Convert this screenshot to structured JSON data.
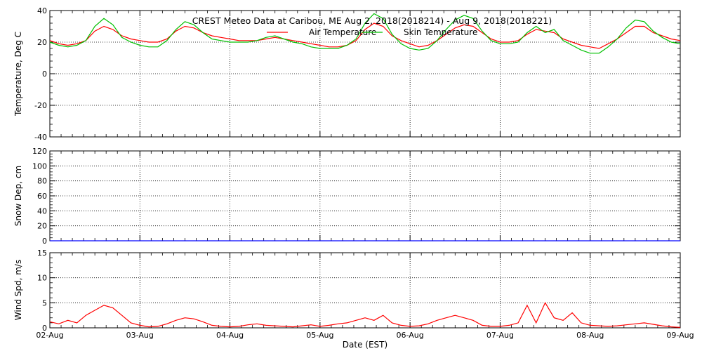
{
  "chart_data": [
    {
      "type": "line",
      "title": "CREST Meteo Data at Caribou, ME   Aug  2, 2018(2018214) - Aug  9, 2018(2018221)",
      "ylabel": "Temperature, Deg C",
      "ylim": [
        -40,
        40
      ],
      "yticks": [
        -40,
        -20,
        0,
        20,
        40
      ],
      "grid": true,
      "legend": "top-center",
      "series": [
        {
          "name": "Air Temperature",
          "color": "#ff0000",
          "x": [
            0,
            0.1,
            0.2,
            0.3,
            0.4,
            0.5,
            0.6,
            0.7,
            0.8,
            0.9,
            1.0,
            1.1,
            1.2,
            1.3,
            1.4,
            1.5,
            1.6,
            1.7,
            1.8,
            1.9,
            2.0,
            2.1,
            2.2,
            2.3,
            2.4,
            2.5,
            2.6,
            2.7,
            2.8,
            2.9,
            3.0,
            3.1,
            3.2,
            3.3,
            3.4,
            3.5,
            3.6,
            3.7,
            3.8,
            3.9,
            4.0,
            4.1,
            4.2,
            4.3,
            4.4,
            4.5,
            4.6,
            4.7,
            4.8,
            4.9,
            5.0,
            5.1,
            5.2,
            5.3,
            5.4,
            5.5,
            5.6,
            5.7,
            5.8,
            5.9,
            6.0,
            6.1,
            6.2,
            6.3,
            6.4,
            6.5,
            6.6,
            6.7,
            6.8,
            6.9,
            7.0
          ],
          "values": [
            21,
            19,
            18,
            19,
            21,
            27,
            30,
            28,
            24,
            22,
            21,
            20,
            20,
            22,
            27,
            30,
            29,
            26,
            24,
            23,
            22,
            21,
            21,
            21,
            22,
            23,
            22,
            21,
            20,
            19,
            18,
            17,
            17,
            18,
            21,
            28,
            32,
            30,
            24,
            21,
            19,
            17,
            18,
            21,
            25,
            29,
            31,
            30,
            26,
            22,
            20,
            20,
            21,
            25,
            28,
            27,
            26,
            22,
            20,
            18,
            17,
            16,
            19,
            22,
            26,
            30,
            30,
            26,
            24,
            22,
            21
          ]
        },
        {
          "name": "Skin Temperature",
          "color": "#00c000",
          "x": [
            0,
            0.1,
            0.2,
            0.3,
            0.4,
            0.5,
            0.6,
            0.7,
            0.8,
            0.9,
            1.0,
            1.1,
            1.2,
            1.3,
            1.4,
            1.5,
            1.6,
            1.7,
            1.8,
            1.9,
            2.0,
            2.1,
            2.2,
            2.3,
            2.4,
            2.5,
            2.6,
            2.7,
            2.8,
            2.9,
            3.0,
            3.1,
            3.2,
            3.3,
            3.4,
            3.5,
            3.6,
            3.7,
            3.8,
            3.9,
            4.0,
            4.1,
            4.2,
            4.3,
            4.4,
            4.5,
            4.6,
            4.7,
            4.8,
            4.9,
            5.0,
            5.1,
            5.2,
            5.3,
            5.4,
            5.5,
            5.6,
            5.7,
            5.8,
            5.9,
            6.0,
            6.1,
            6.2,
            6.3,
            6.4,
            6.5,
            6.6,
            6.7,
            6.8,
            6.9,
            7.0
          ],
          "values": [
            20,
            18,
            17,
            18,
            21,
            30,
            35,
            31,
            23,
            20,
            18,
            17,
            17,
            21,
            28,
            33,
            31,
            26,
            22,
            21,
            20,
            20,
            20,
            21,
            23,
            24,
            22,
            20,
            19,
            17,
            16,
            16,
            16,
            18,
            22,
            32,
            38,
            35,
            25,
            19,
            16,
            15,
            16,
            21,
            28,
            34,
            37,
            35,
            27,
            21,
            19,
            19,
            20,
            26,
            30,
            26,
            28,
            21,
            18,
            15,
            13,
            13,
            17,
            22,
            29,
            34,
            33,
            27,
            23,
            20,
            19
          ]
        }
      ]
    },
    {
      "type": "line",
      "ylabel": "Snow Dep, cm",
      "ylim": [
        0,
        120
      ],
      "yticks": [
        0,
        20,
        40,
        60,
        80,
        100,
        120
      ],
      "grid": true,
      "series": [
        {
          "color": "#0000ff",
          "x": [
            0,
            1,
            2,
            3,
            4,
            5,
            6,
            7
          ],
          "values": [
            0,
            0,
            0,
            0,
            0,
            0,
            0,
            0
          ]
        }
      ]
    },
    {
      "type": "line",
      "ylabel": "Wind Spd, m/s",
      "xlabel": "Date (EST)",
      "ylim": [
        0,
        15
      ],
      "yticks": [
        0,
        5,
        10,
        15
      ],
      "x_ticklabels": [
        "02-Aug",
        "03-Aug",
        "04-Aug",
        "05-Aug",
        "06-Aug",
        "07-Aug",
        "08-Aug",
        "09-Aug"
      ],
      "grid": true,
      "series": [
        {
          "color": "#ff0000",
          "x": [
            0,
            0.1,
            0.2,
            0.3,
            0.4,
            0.5,
            0.6,
            0.7,
            0.8,
            0.9,
            1.0,
            1.1,
            1.2,
            1.3,
            1.4,
            1.5,
            1.6,
            1.7,
            1.8,
            1.9,
            2.0,
            2.1,
            2.2,
            2.3,
            2.4,
            2.5,
            2.6,
            2.7,
            2.8,
            2.9,
            3.0,
            3.1,
            3.2,
            3.3,
            3.4,
            3.5,
            3.6,
            3.7,
            3.8,
            3.9,
            4.0,
            4.1,
            4.2,
            4.3,
            4.4,
            4.5,
            4.6,
            4.7,
            4.8,
            4.9,
            5.0,
            5.1,
            5.2,
            5.3,
            5.4,
            5.5,
            5.6,
            5.7,
            5.8,
            5.9,
            6.0,
            6.1,
            6.2,
            6.3,
            6.4,
            6.5,
            6.6,
            6.7,
            6.8,
            6.9,
            7.0
          ],
          "values": [
            1.2,
            0.8,
            1.5,
            1.0,
            2.5,
            3.5,
            4.5,
            4.0,
            2.5,
            1.0,
            0.5,
            0.2,
            0.3,
            0.8,
            1.5,
            2.0,
            1.8,
            1.2,
            0.5,
            0.3,
            0.2,
            0.3,
            0.6,
            0.8,
            0.5,
            0.4,
            0.3,
            0.2,
            0.4,
            0.6,
            0.3,
            0.5,
            0.8,
            1.0,
            1.5,
            2.0,
            1.5,
            2.5,
            1.0,
            0.5,
            0.3,
            0.4,
            0.8,
            1.5,
            2.0,
            2.5,
            2.0,
            1.5,
            0.5,
            0.3,
            0.3,
            0.5,
            1.0,
            4.5,
            1.0,
            5.0,
            2.0,
            1.5,
            3.0,
            1.0,
            0.5,
            0.4,
            0.3,
            0.4,
            0.6,
            0.8,
            1.0,
            0.7,
            0.4,
            0.2,
            0.1
          ]
        }
      ]
    }
  ]
}
